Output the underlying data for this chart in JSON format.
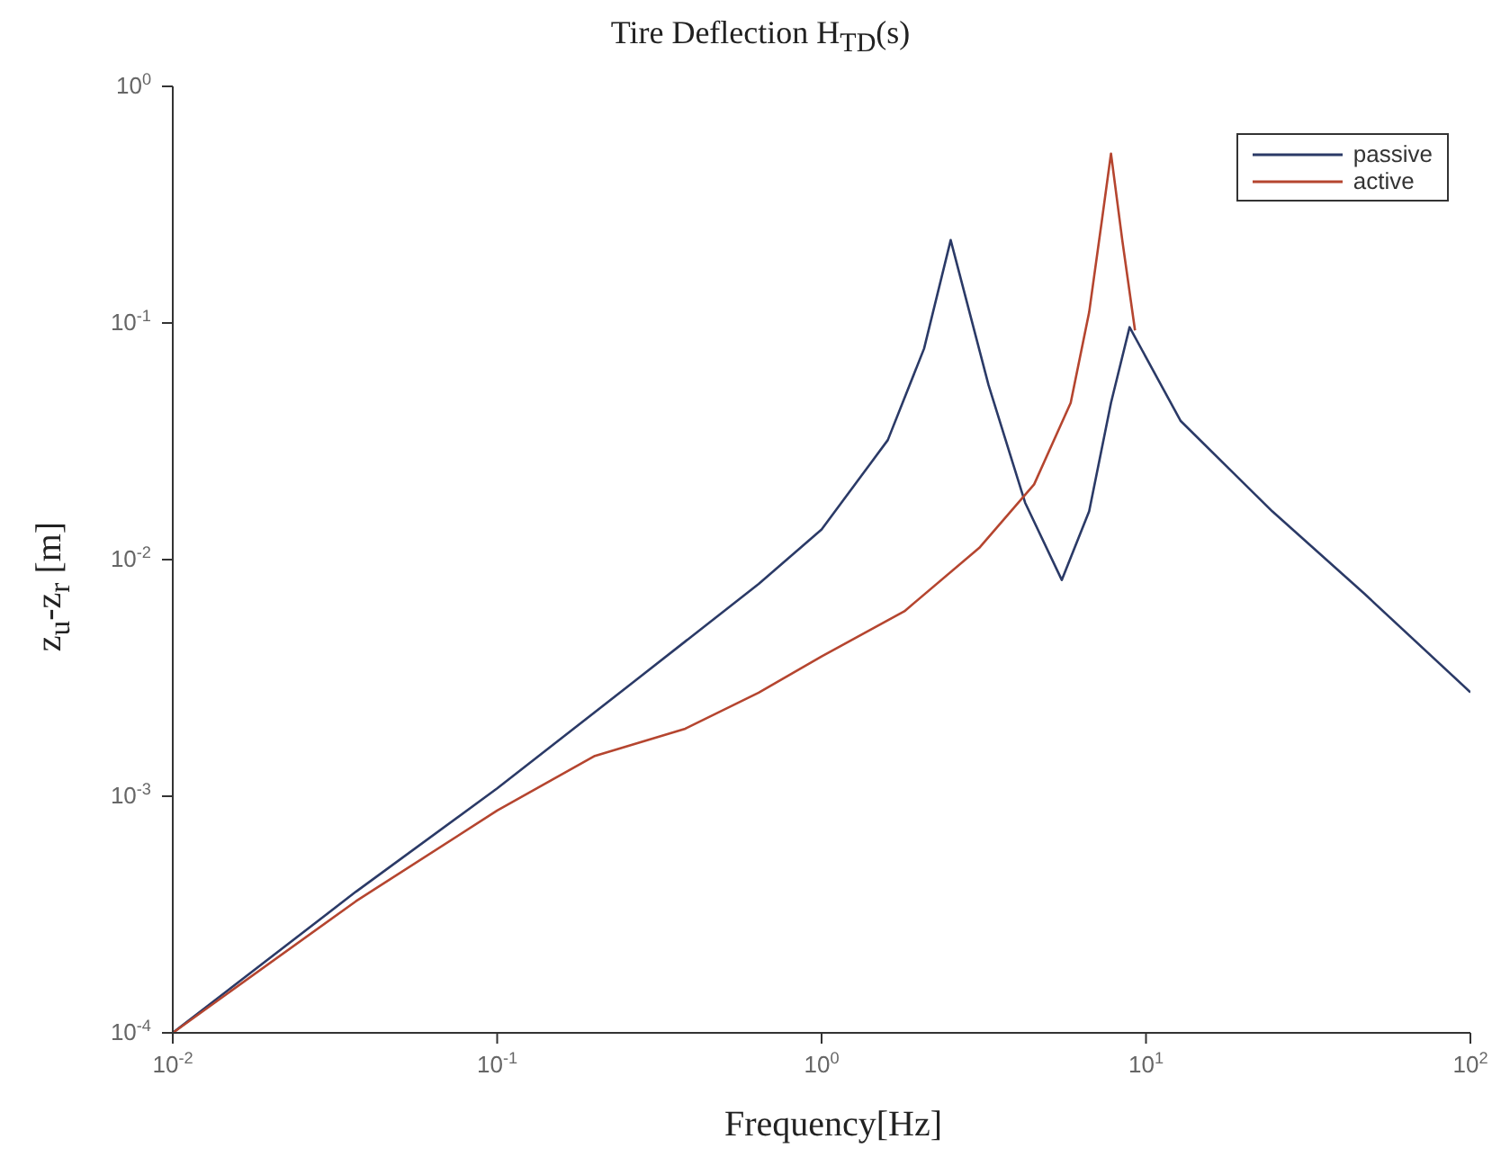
{
  "chart_data": {
    "type": "line",
    "title": "Tire Deflection H$_{TD}$(s)",
    "xlabel": "Frequency[Hz]",
    "ylabel": "z$_{u}$-z$_{r}$ [m]",
    "log": "xy",
    "grid": false,
    "legend": "top right",
    "marker": "none",
    "line_style": "solid",
    "xlim": [
      0.01,
      100
    ],
    "ylim": [
      0.0001,
      1
    ],
    "xticks": [
      {
        "value": 0.01,
        "label": "10$^{-2}$"
      },
      {
        "value": 0.1,
        "label": "10$^{-1}$"
      },
      {
        "value": 1,
        "label": "10$^{0}$"
      },
      {
        "value": 10,
        "label": "10$^{1}$"
      },
      {
        "value": 100,
        "label": "10$^{2}$"
      }
    ],
    "yticks": [
      {
        "value": 0.0001,
        "label": "10$^{-4}$"
      },
      {
        "value": 0.001,
        "label": "10$^{-3}$"
      },
      {
        "value": 0.01,
        "label": "10$^{-2}$"
      },
      {
        "value": 0.1,
        "label": "10$^{-1}$"
      },
      {
        "value": 1,
        "label": "10$^{0}$"
      }
    ],
    "series": [
      {
        "name": "passive",
        "color": "#2b3a67",
        "x": [
          0.01,
          0.0367,
          0.1,
          0.26,
          0.64,
          1.0,
          1.6,
          2.07,
          2.5,
          3.27,
          4.24,
          5.5,
          6.68,
          7.8,
          8.9,
          12.8,
          24.5,
          47,
          100
        ],
        "values": [
          0.0001,
          0.000395,
          0.00108,
          0.003,
          0.0079,
          0.0134,
          0.032,
          0.078,
          0.224,
          0.0547,
          0.0174,
          0.0082,
          0.016,
          0.046,
          0.096,
          0.0385,
          0.016,
          0.0072,
          0.00275
        ]
      },
      {
        "name": "active",
        "color": "#b5452f",
        "x": [
          0.01,
          0.0367,
          0.1,
          0.2,
          0.38,
          0.64,
          1.0,
          1.8,
          3.06,
          4.52,
          5.86,
          6.68,
          7.3,
          7.8,
          8.45,
          9.25
        ],
        "values": [
          0.0001,
          0.00036,
          0.00087,
          0.00148,
          0.00193,
          0.00274,
          0.0039,
          0.00605,
          0.0112,
          0.0208,
          0.046,
          0.111,
          0.267,
          0.52,
          0.224,
          0.093
        ]
      }
    ]
  }
}
